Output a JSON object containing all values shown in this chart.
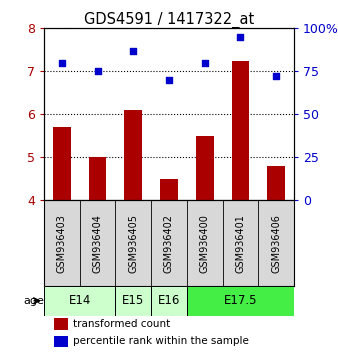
{
  "title": "GDS4591 / 1417322_at",
  "samples": [
    "GSM936403",
    "GSM936404",
    "GSM936405",
    "GSM936402",
    "GSM936400",
    "GSM936401",
    "GSM936406"
  ],
  "transformed_counts": [
    5.7,
    5.0,
    6.1,
    4.5,
    5.5,
    7.25,
    4.8
  ],
  "percentile_ranks": [
    80,
    75,
    87,
    70,
    80,
    95,
    72
  ],
  "bar_color": "#aa0000",
  "dot_color": "#0000cc",
  "ylim_left": [
    4,
    8
  ],
  "ylim_right": [
    0,
    100
  ],
  "yticks_left": [
    4,
    5,
    6,
    7,
    8
  ],
  "yticks_right": [
    0,
    25,
    50,
    75,
    100
  ],
  "ytick_labels_right": [
    "0",
    "25",
    "50",
    "75",
    "100%"
  ],
  "age_groups": [
    {
      "label": "E14",
      "span": [
        0,
        1
      ],
      "color": "#ccffcc"
    },
    {
      "label": "E15",
      "span": [
        2,
        2
      ],
      "color": "#ccffcc"
    },
    {
      "label": "E16",
      "span": [
        3,
        3
      ],
      "color": "#ccffcc"
    },
    {
      "label": "E17.5",
      "span": [
        4,
        6
      ],
      "color": "#44ee44"
    }
  ],
  "background_color": "#ffffff",
  "plot_bg_color": "#ffffff",
  "legend_bar_label": "transformed count",
  "legend_dot_label": "percentile rank within the sample"
}
